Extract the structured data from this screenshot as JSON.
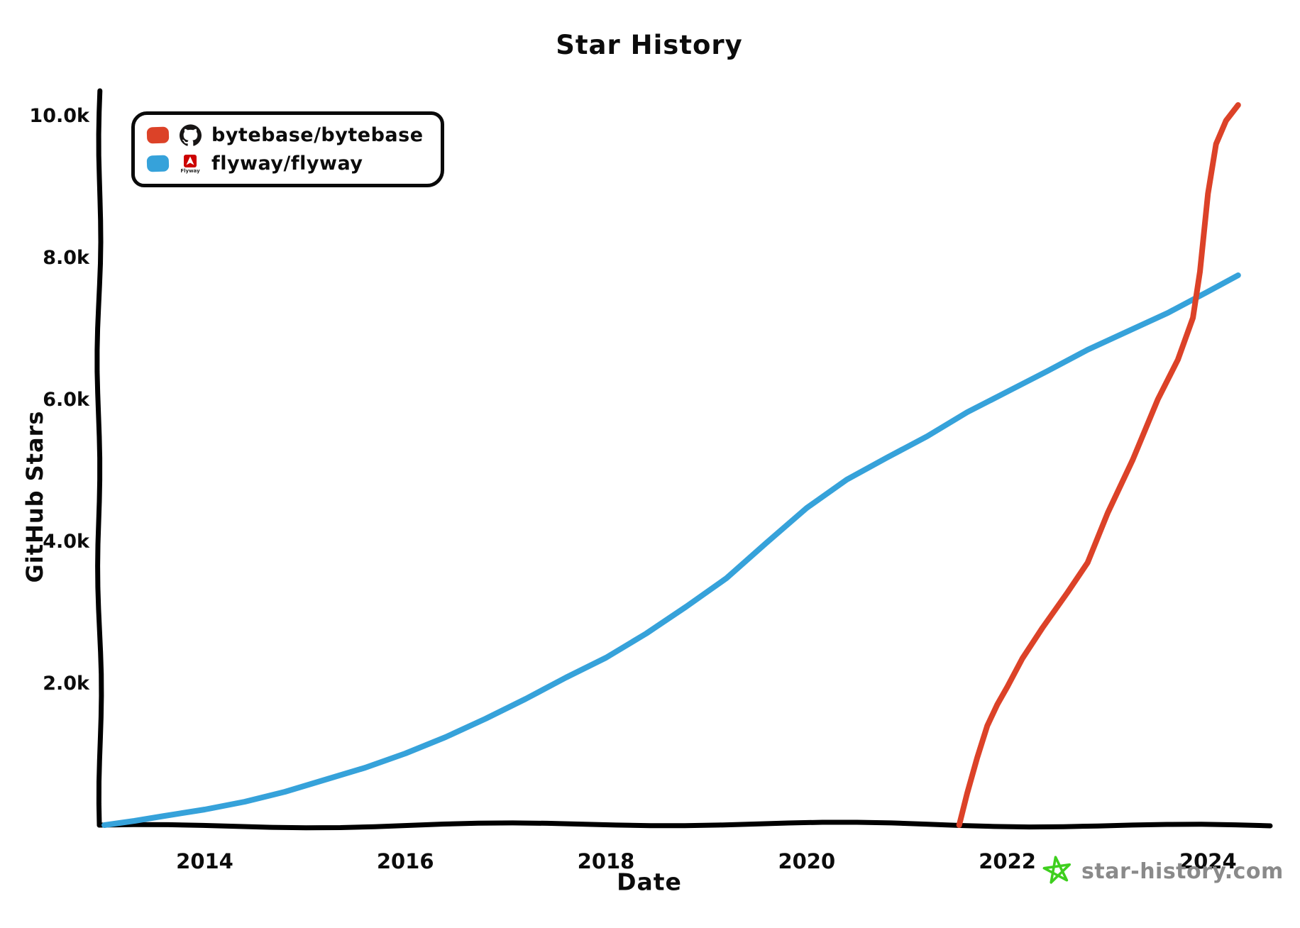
{
  "page": {
    "background": "#ffffff"
  },
  "chart_data": {
    "type": "line",
    "title": "Star History",
    "xlabel": "Date",
    "ylabel": "GitHub Stars",
    "legend_position": "top-left",
    "grid": false,
    "x_axis": {
      "min": 2012.95,
      "max": 2024.62,
      "ticks": [
        {
          "value": 2014,
          "label": "2014"
        },
        {
          "value": 2016,
          "label": "2016"
        },
        {
          "value": 2018,
          "label": "2018"
        },
        {
          "value": 2020,
          "label": "2020"
        },
        {
          "value": 2022,
          "label": "2022"
        },
        {
          "value": 2024,
          "label": "2024"
        }
      ]
    },
    "y_axis": {
      "min": 0,
      "max": 10350,
      "ticks": [
        {
          "value": 2000,
          "label": "2.0k"
        },
        {
          "value": 4000,
          "label": "4.0k"
        },
        {
          "value": 6000,
          "label": "6.0k"
        },
        {
          "value": 8000,
          "label": "8.0k"
        },
        {
          "value": 10000,
          "label": "10.0k"
        }
      ]
    },
    "series": [
      {
        "name": "bytebase/bytebase",
        "color": "#dc4228",
        "icon": "github-icon",
        "points": [
          [
            2021.52,
            0
          ],
          [
            2021.6,
            450
          ],
          [
            2021.7,
            950
          ],
          [
            2021.8,
            1400
          ],
          [
            2021.9,
            1700
          ],
          [
            2022.0,
            1950
          ],
          [
            2022.15,
            2350
          ],
          [
            2022.35,
            2780
          ],
          [
            2022.6,
            3280
          ],
          [
            2022.8,
            3700
          ],
          [
            2023.0,
            4400
          ],
          [
            2023.25,
            5150
          ],
          [
            2023.5,
            6000
          ],
          [
            2023.7,
            6560
          ],
          [
            2023.85,
            7150
          ],
          [
            2023.92,
            7800
          ],
          [
            2024.0,
            8900
          ],
          [
            2024.08,
            9600
          ],
          [
            2024.18,
            9930
          ],
          [
            2024.3,
            10150
          ]
        ]
      },
      {
        "name": "flyway/flyway",
        "color": "#36a2da",
        "icon": "flyway-icon",
        "points": [
          [
            2013.0,
            0
          ],
          [
            2013.3,
            60
          ],
          [
            2013.6,
            130
          ],
          [
            2014.0,
            220
          ],
          [
            2014.4,
            330
          ],
          [
            2014.8,
            470
          ],
          [
            2015.2,
            640
          ],
          [
            2015.6,
            810
          ],
          [
            2016.0,
            1010
          ],
          [
            2016.4,
            1240
          ],
          [
            2016.8,
            1500
          ],
          [
            2017.2,
            1780
          ],
          [
            2017.6,
            2080
          ],
          [
            2018.0,
            2360
          ],
          [
            2018.4,
            2700
          ],
          [
            2018.8,
            3080
          ],
          [
            2019.2,
            3480
          ],
          [
            2019.6,
            3980
          ],
          [
            2020.0,
            4470
          ],
          [
            2020.4,
            4870
          ],
          [
            2020.8,
            5180
          ],
          [
            2021.2,
            5480
          ],
          [
            2021.6,
            5820
          ],
          [
            2022.0,
            6110
          ],
          [
            2022.4,
            6400
          ],
          [
            2022.8,
            6700
          ],
          [
            2023.2,
            6960
          ],
          [
            2023.6,
            7220
          ],
          [
            2024.0,
            7520
          ],
          [
            2024.3,
            7750
          ]
        ]
      }
    ]
  },
  "legend": {
    "flyway_logo_text": "Flyway"
  },
  "watermark": {
    "label": "star-history.com",
    "text_color": "#8a8a8a",
    "star_color": "#3ecf1e"
  }
}
